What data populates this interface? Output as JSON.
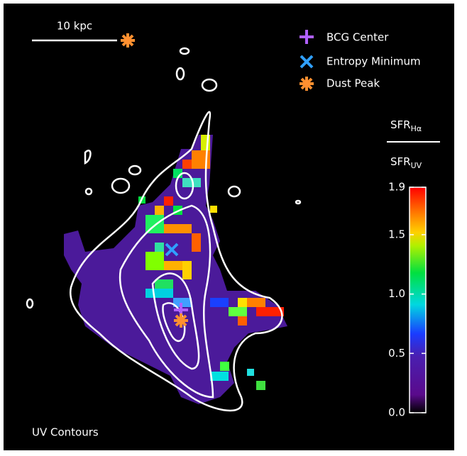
{
  "scale_bar": {
    "label": "10 kpc"
  },
  "legend": {
    "items": [
      "BCG Center",
      "Entropy Minimum",
      "Dust Peak"
    ]
  },
  "colorbar": {
    "numerator": "SFR",
    "numerator_sub": "Hα",
    "denominator": "SFR",
    "denominator_sub": "UV",
    "lim": [
      0,
      1.9
    ],
    "ticks": [
      {
        "value": 0,
        "label": "0.0"
      },
      {
        "value": 0.5,
        "label": "0.5"
      },
      {
        "value": 1,
        "label": "1.0"
      },
      {
        "value": 1.5,
        "label": "1.5"
      },
      {
        "value": 1.9,
        "label": "1.9"
      }
    ]
  },
  "caption": "UV Contours"
}
